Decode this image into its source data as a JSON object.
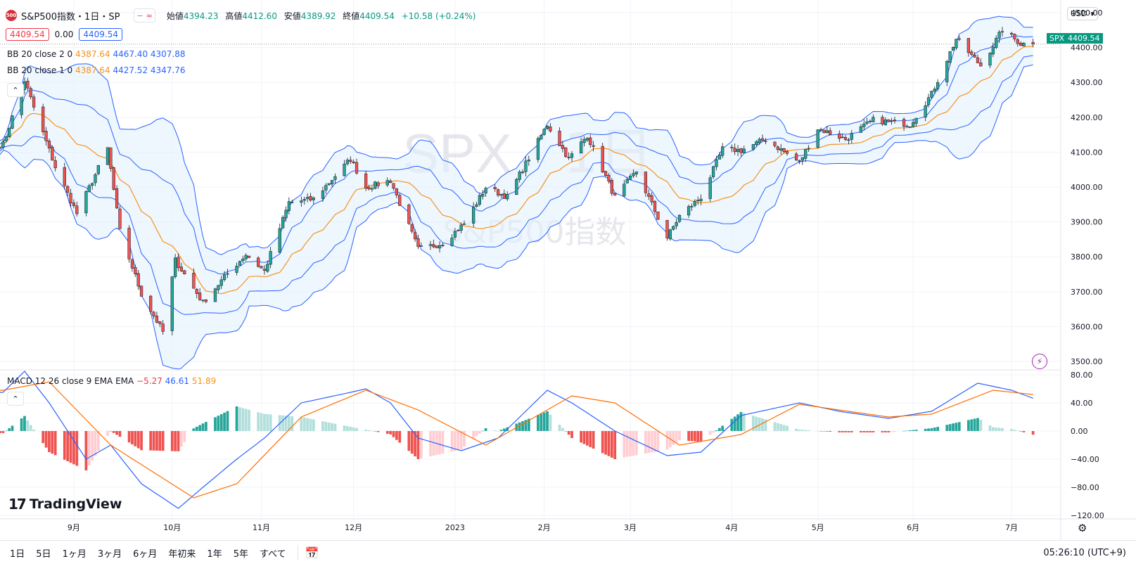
{
  "header": {
    "logo_text": "500",
    "symbol_title": "S&P500指数・1日・SP",
    "ohlc": {
      "open_label": "始値",
      "open": "4394.23",
      "high_label": "高値",
      "high": "4412.60",
      "low_label": "安値",
      "low": "4389.92",
      "close_label": "終値",
      "close": "4409.54",
      "change": "+10.58 (+0.24%)"
    },
    "pill_icons": [
      "minus-icon",
      "approx-icon"
    ],
    "pill_glyph_a": "−",
    "pill_glyph_b": "≈"
  },
  "price_boxes": {
    "sell": "4409.54",
    "spread": "0.00",
    "buy": "4409.54"
  },
  "indicators": {
    "bb2": {
      "label": "BB 20 close 2 0",
      "basis": "4387.64",
      "upper": "4467.40",
      "lower": "4307.88"
    },
    "bb1": {
      "label": "BB 20 close 1 0",
      "basis": "4387.64",
      "upper": "4427.52",
      "lower": "4347.76"
    },
    "macd": {
      "label": "MACD 12 26 close 9 EMA EMA",
      "hist": "−5.27",
      "macd": "46.61",
      "signal": "51.89"
    }
  },
  "watermark": {
    "line1": "SPX",
    "line1b": "1日",
    "line2": "S&P500指数"
  },
  "currency": "USD",
  "price_tags": {
    "symbol": "SPX",
    "last": "4409.54"
  },
  "brand": "TradingView",
  "bottom_bar": {
    "ranges": [
      "1日",
      "5日",
      "1ヶ月",
      "3ヶ月",
      "6ヶ月",
      "年初来",
      "1年",
      "5年",
      "すべて"
    ],
    "clock": "05:26:10 (UTC+9)"
  },
  "colors": {
    "up": "#26a69a",
    "down": "#ef5350",
    "bb_outer": "#2962ff",
    "basis": "#f7931a",
    "macd_line": "#2962ff",
    "signal_line": "#ff6d00",
    "hist_up": "#26a69a",
    "hist_up_light": "#b2dfdb",
    "hist_down": "#ef5350",
    "hist_down_light": "#ffcdd2",
    "band_fill": "#e3f2fd"
  },
  "chart_data": {
    "type": "candlestick",
    "title": "S&P500指数・1日・SP",
    "x_ticks": [
      "9月",
      "10月",
      "11月",
      "12月",
      "2023",
      "2月",
      "3月",
      "4月",
      "5月",
      "6月",
      "7月"
    ],
    "y_ticks": [
      "3500.00",
      "3600.00",
      "3700.00",
      "3800.00",
      "3900.00",
      "4000.00",
      "4100.00",
      "4200.00",
      "4300.00",
      "4400.00",
      "4500.00"
    ],
    "ylim": [
      3480,
      4520
    ],
    "close_path": [
      [
        "2022-08-09",
        4122
      ],
      [
        "2022-08-16",
        4305
      ],
      [
        "2022-08-19",
        4228
      ],
      [
        "2022-08-26",
        4057
      ],
      [
        "2022-09-02",
        3924
      ],
      [
        "2022-09-12",
        4110
      ],
      [
        "2022-09-16",
        3873
      ],
      [
        "2022-09-23",
        3693
      ],
      [
        "2022-09-30",
        3585
      ],
      [
        "2022-10-04",
        3790
      ],
      [
        "2022-10-13",
        3669
      ],
      [
        "2022-10-21",
        3752
      ],
      [
        "2022-10-27",
        3807
      ],
      [
        "2022-11-02",
        3759
      ],
      [
        "2022-11-10",
        3956
      ],
      [
        "2022-11-18",
        3965
      ],
      [
        "2022-11-30",
        4080
      ],
      [
        "2022-12-05",
        3998
      ],
      [
        "2022-12-13",
        4019
      ],
      [
        "2022-12-22",
        3822
      ],
      [
        "2022-12-30",
        3839
      ],
      [
        "2023-01-06",
        3895
      ],
      [
        "2023-01-13",
        3999
      ],
      [
        "2023-01-20",
        3972
      ],
      [
        "2023-02-02",
        4179
      ],
      [
        "2023-02-09",
        4081
      ],
      [
        "2023-02-15",
        4148
      ],
      [
        "2023-02-24",
        3970
      ],
      [
        "2023-03-03",
        4045
      ],
      [
        "2023-03-13",
        3855
      ],
      [
        "2023-03-17",
        3917
      ],
      [
        "2023-03-24",
        3971
      ],
      [
        "2023-03-31",
        4109
      ],
      [
        "2023-04-06",
        4105
      ],
      [
        "2023-04-14",
        4137
      ],
      [
        "2023-04-25",
        4071
      ],
      [
        "2023-05-01",
        4168
      ],
      [
        "2023-05-10",
        4137
      ],
      [
        "2023-05-19",
        4192
      ],
      [
        "2023-05-31",
        4180
      ],
      [
        "2023-06-07",
        4267
      ],
      [
        "2023-06-15",
        4425
      ],
      [
        "2023-06-23",
        4348
      ],
      [
        "2023-06-30",
        4450
      ],
      [
        "2023-07-06",
        4411
      ],
      [
        "2023-07-10",
        4409.54
      ]
    ],
    "last_close": 4409.54,
    "bollinger": {
      "period": 20,
      "source": "close",
      "multipliers": [
        2,
        1
      ]
    },
    "macd_panel": {
      "y_ticks": [
        "80.00",
        "40.00",
        "0.00",
        "−40.00",
        "−80.00",
        "−120.00"
      ],
      "ylim": [
        -125,
        85
      ],
      "macd_path": [
        [
          "2022-08-09",
          55
        ],
        [
          "2022-08-16",
          85
        ],
        [
          "2022-08-24",
          40
        ],
        [
          "2022-09-05",
          -40
        ],
        [
          "2022-09-13",
          -20
        ],
        [
          "2022-09-23",
          -75
        ],
        [
          "2022-10-05",
          -110
        ],
        [
          "2022-10-13",
          -80
        ],
        [
          "2022-10-24",
          -40
        ],
        [
          "2022-11-02",
          -10
        ],
        [
          "2022-11-14",
          40
        ],
        [
          "2022-11-30",
          55
        ],
        [
          "2022-12-05",
          60
        ],
        [
          "2022-12-13",
          40
        ],
        [
          "2022-12-22",
          -10
        ],
        [
          "2023-01-05",
          -28
        ],
        [
          "2023-01-17",
          -10
        ],
        [
          "2023-02-02",
          58
        ],
        [
          "2023-02-10",
          40
        ],
        [
          "2023-02-24",
          0
        ],
        [
          "2023-03-13",
          -35
        ],
        [
          "2023-03-24",
          -30
        ],
        [
          "2023-04-06",
          22
        ],
        [
          "2023-04-25",
          40
        ],
        [
          "2023-05-08",
          28
        ],
        [
          "2023-05-24",
          18
        ],
        [
          "2023-06-07",
          28
        ],
        [
          "2023-06-22",
          68
        ],
        [
          "2023-07-03",
          58
        ],
        [
          "2023-07-10",
          46.61
        ]
      ],
      "signal_path": [
        [
          "2022-08-09",
          58
        ],
        [
          "2022-08-24",
          70
        ],
        [
          "2022-09-13",
          -20
        ],
        [
          "2022-10-10",
          -95
        ],
        [
          "2022-10-24",
          -75
        ],
        [
          "2022-11-14",
          20
        ],
        [
          "2022-12-05",
          58
        ],
        [
          "2022-12-22",
          30
        ],
        [
          "2023-01-13",
          -20
        ],
        [
          "2023-02-10",
          50
        ],
        [
          "2023-02-24",
          40
        ],
        [
          "2023-03-17",
          -20
        ],
        [
          "2023-04-06",
          -5
        ],
        [
          "2023-04-25",
          38
        ],
        [
          "2023-05-24",
          20
        ],
        [
          "2023-06-07",
          24
        ],
        [
          "2023-06-27",
          58
        ],
        [
          "2023-07-10",
          51.89
        ]
      ],
      "hist_label_value": -5.27
    }
  }
}
